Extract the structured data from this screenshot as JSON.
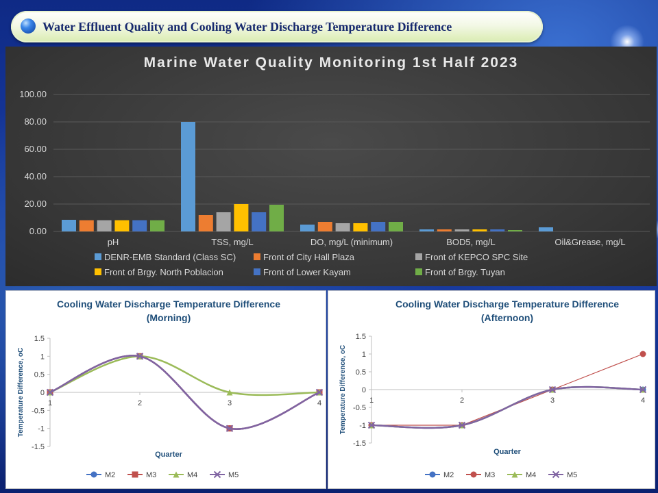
{
  "slide": {
    "title": "Water Effluent Quality and Cooling Water Discharge Temperature Difference"
  },
  "chart_data": [
    {
      "type": "bar",
      "title": "Marine Water Quality Monitoring 1st Half 2023",
      "categories": [
        "pH",
        "TSS, mg/L",
        "DO, mg/L (minimum)",
        "BOD5, mg/L",
        "Oil&Grease, mg/L"
      ],
      "series": [
        {
          "name": "DENR-EMB Standard (Class SC)",
          "color": "#5b9bd5",
          "values": [
            8.5,
            80,
            5,
            1.5,
            3
          ]
        },
        {
          "name": "Front of City Hall Plaza",
          "color": "#ed7d31",
          "values": [
            8.2,
            12,
            7,
            1.5,
            0
          ]
        },
        {
          "name": "Front of KEPCO SPC Site",
          "color": "#a5a5a5",
          "values": [
            8.2,
            14,
            6,
            1.5,
            0
          ]
        },
        {
          "name": "Front of Brgy. North Poblacion",
          "color": "#ffc000",
          "values": [
            8.2,
            20,
            6,
            1.5,
            0
          ]
        },
        {
          "name": "Front of Lower Kayam",
          "color": "#4472c4",
          "values": [
            8.2,
            14,
            7,
            1.5,
            0
          ]
        },
        {
          "name": "Front of Brgy. Tuyan",
          "color": "#70ad47",
          "values": [
            8.2,
            19.5,
            7,
            1.0,
            0
          ]
        }
      ],
      "yticks": [
        "0.00",
        "20.00",
        "40.00",
        "60.00",
        "80.00",
        "100.00"
      ],
      "ylim": [
        0,
        100
      ],
      "grid": true,
      "legend": "bottom"
    },
    {
      "type": "line",
      "title": "Cooling Water Discharge Temperature Difference",
      "subtitle": "(Morning)",
      "xlabel": "Quarter",
      "ylabel": "Temperature Difference, oC",
      "x": [
        1,
        2,
        3,
        4
      ],
      "xticks": [
        "1",
        "2",
        "3",
        "4"
      ],
      "yticks": [
        "-1.5",
        "-1",
        "-0.5",
        "0",
        "0.5",
        "1",
        "1.5"
      ],
      "ylim": [
        -1.5,
        1.5
      ],
      "smooth": true,
      "legend": "bottom",
      "series": [
        {
          "name": "M2",
          "color": "#4472c4",
          "marker": "circle",
          "values": [
            0,
            1,
            -1,
            0
          ]
        },
        {
          "name": "M3",
          "color": "#c0504d",
          "marker": "square",
          "values": [
            0,
            1,
            -1,
            0
          ]
        },
        {
          "name": "M4",
          "color": "#9bbb59",
          "marker": "triangle",
          "values": [
            0,
            1,
            0,
            0
          ]
        },
        {
          "name": "M5",
          "color": "#8064a2",
          "marker": "x",
          "values": [
            0,
            1,
            -1,
            0
          ]
        }
      ]
    },
    {
      "type": "line",
      "title": "Cooling Water Discharge Temperature Difference",
      "subtitle": "(Afternoon)",
      "xlabel": "Quarter",
      "ylabel": "Temperature Difference, oC",
      "x": [
        1,
        2,
        3,
        4
      ],
      "xticks": [
        "1",
        "2",
        "3",
        "4"
      ],
      "yticks": [
        "-1.5",
        "-1",
        "-0.5",
        "0",
        "0.5",
        "1",
        "1.5"
      ],
      "ylim": [
        -1.5,
        1.5
      ],
      "legend": "bottom",
      "series": [
        {
          "name": "M2",
          "color": "#4472c4",
          "marker": "circle",
          "smooth": true,
          "values": [
            -1,
            -1,
            0,
            0
          ]
        },
        {
          "name": "M3",
          "color": "#c0504d",
          "marker": "circle",
          "smooth": false,
          "values": [
            -1,
            -1,
            0,
            1
          ]
        },
        {
          "name": "M4",
          "color": "#9bbb59",
          "marker": "triangle",
          "smooth": true,
          "values": [
            -1,
            -1,
            0,
            0
          ]
        },
        {
          "name": "M5",
          "color": "#8064a2",
          "marker": "x",
          "smooth": true,
          "values": [
            -1,
            -1,
            0,
            0
          ]
        }
      ]
    }
  ]
}
